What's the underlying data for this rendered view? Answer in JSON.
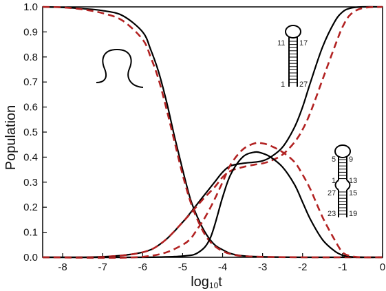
{
  "chart_data": {
    "type": "line",
    "xlabel_main": "log",
    "xlabel_sub": "10",
    "xlabel_tail": "t",
    "ylabel": "Population",
    "xlim": [
      -8.5,
      0
    ],
    "ylim": [
      0,
      1
    ],
    "x_ticks": [
      -8,
      -7,
      -6,
      -5,
      -4,
      -3,
      -2,
      -1,
      0
    ],
    "y_ticks": [
      0.0,
      0.1,
      0.2,
      0.3,
      0.4,
      0.5,
      0.6,
      0.7,
      0.8,
      0.9,
      1.0
    ],
    "grid": false,
    "legend": "none",
    "colors": {
      "solid": "#000000",
      "dashed": "#b22222"
    },
    "series": [
      {
        "style": "solid",
        "x": [
          -8.5,
          -8,
          -7.5,
          -7,
          -6.5,
          -6,
          -5.8,
          -5.6,
          -5.4,
          -5.2,
          -5.0,
          -4.8,
          -4.6,
          -4.4,
          -4.2,
          -4.0,
          -3.8,
          -3.5,
          -3,
          -2,
          -1,
          0
        ],
        "y": [
          1.0,
          0.998,
          0.993,
          0.985,
          0.965,
          0.9,
          0.83,
          0.74,
          0.62,
          0.48,
          0.35,
          0.23,
          0.15,
          0.09,
          0.05,
          0.03,
          0.015,
          0.006,
          0.002,
          0,
          0,
          0
        ]
      },
      {
        "style": "dashed",
        "x": [
          -8.5,
          -8,
          -7.5,
          -7,
          -6.5,
          -6,
          -5.8,
          -5.6,
          -5.4,
          -5.2,
          -5.0,
          -4.8,
          -4.6,
          -4.4,
          -4.2,
          -4.0,
          -3.8,
          -3.5,
          -3,
          -2,
          -1,
          0
        ],
        "y": [
          1.0,
          0.998,
          0.99,
          0.975,
          0.945,
          0.87,
          0.8,
          0.71,
          0.59,
          0.46,
          0.33,
          0.22,
          0.14,
          0.08,
          0.045,
          0.025,
          0.013,
          0.005,
          0.002,
          0,
          0,
          0
        ]
      },
      {
        "style": "solid",
        "x": [
          -8.5,
          -7,
          -6,
          -5.5,
          -5,
          -4.5,
          -4.2,
          -4,
          -3.8,
          -3.5,
          -3.2,
          -3,
          -2.8,
          -2.5,
          -2.2,
          -2,
          -1.8,
          -1.5,
          -1.2,
          -1,
          -0.8,
          -0.5,
          0
        ],
        "y": [
          0,
          0.002,
          0.02,
          0.06,
          0.14,
          0.24,
          0.3,
          0.34,
          0.365,
          0.375,
          0.38,
          0.385,
          0.4,
          0.44,
          0.52,
          0.6,
          0.7,
          0.84,
          0.94,
          0.98,
          0.995,
          1.0,
          1.0
        ]
      },
      {
        "style": "dashed",
        "x": [
          -8.5,
          -7,
          -6,
          -5.5,
          -5,
          -4.5,
          -4.2,
          -4,
          -3.8,
          -3.5,
          -3.2,
          -3,
          -2.8,
          -2.5,
          -2.2,
          -2,
          -1.8,
          -1.5,
          -1.2,
          -1,
          -0.8,
          -0.5,
          0
        ],
        "y": [
          0,
          0.002,
          0.02,
          0.06,
          0.14,
          0.23,
          0.28,
          0.32,
          0.345,
          0.36,
          0.37,
          0.375,
          0.385,
          0.41,
          0.46,
          0.51,
          0.58,
          0.71,
          0.84,
          0.92,
          0.97,
          0.995,
          1.0
        ]
      },
      {
        "style": "solid",
        "x": [
          -8.5,
          -6,
          -5,
          -4.6,
          -4.3,
          -4.0,
          -3.8,
          -3.5,
          -3.2,
          -3.0,
          -2.8,
          -2.5,
          -2.2,
          -2.0,
          -1.8,
          -1.5,
          -1.2,
          -1.0,
          -0.8,
          -0.5,
          0
        ],
        "y": [
          0,
          0,
          0.005,
          0.02,
          0.08,
          0.24,
          0.33,
          0.4,
          0.42,
          0.415,
          0.4,
          0.36,
          0.29,
          0.22,
          0.15,
          0.07,
          0.025,
          0.008,
          0.002,
          0,
          0
        ]
      },
      {
        "style": "dashed",
        "x": [
          -8.5,
          -6,
          -5,
          -4.6,
          -4.3,
          -4.0,
          -3.8,
          -3.5,
          -3.2,
          -3.0,
          -2.8,
          -2.5,
          -2.2,
          -2.0,
          -1.8,
          -1.5,
          -1.2,
          -1.0,
          -0.8,
          -0.5,
          0
        ],
        "y": [
          0,
          0.002,
          0.05,
          0.12,
          0.2,
          0.3,
          0.37,
          0.43,
          0.455,
          0.455,
          0.445,
          0.42,
          0.38,
          0.33,
          0.27,
          0.16,
          0.07,
          0.02,
          0.005,
          0,
          0
        ]
      }
    ],
    "annotations": {
      "hairpin_top": {
        "labels": [
          "11",
          "17",
          "1",
          "27"
        ]
      },
      "hairpin_bottom": {
        "labels": [
          "5",
          "9",
          "1",
          "13",
          "27",
          "15",
          "23",
          "19"
        ]
      }
    }
  }
}
